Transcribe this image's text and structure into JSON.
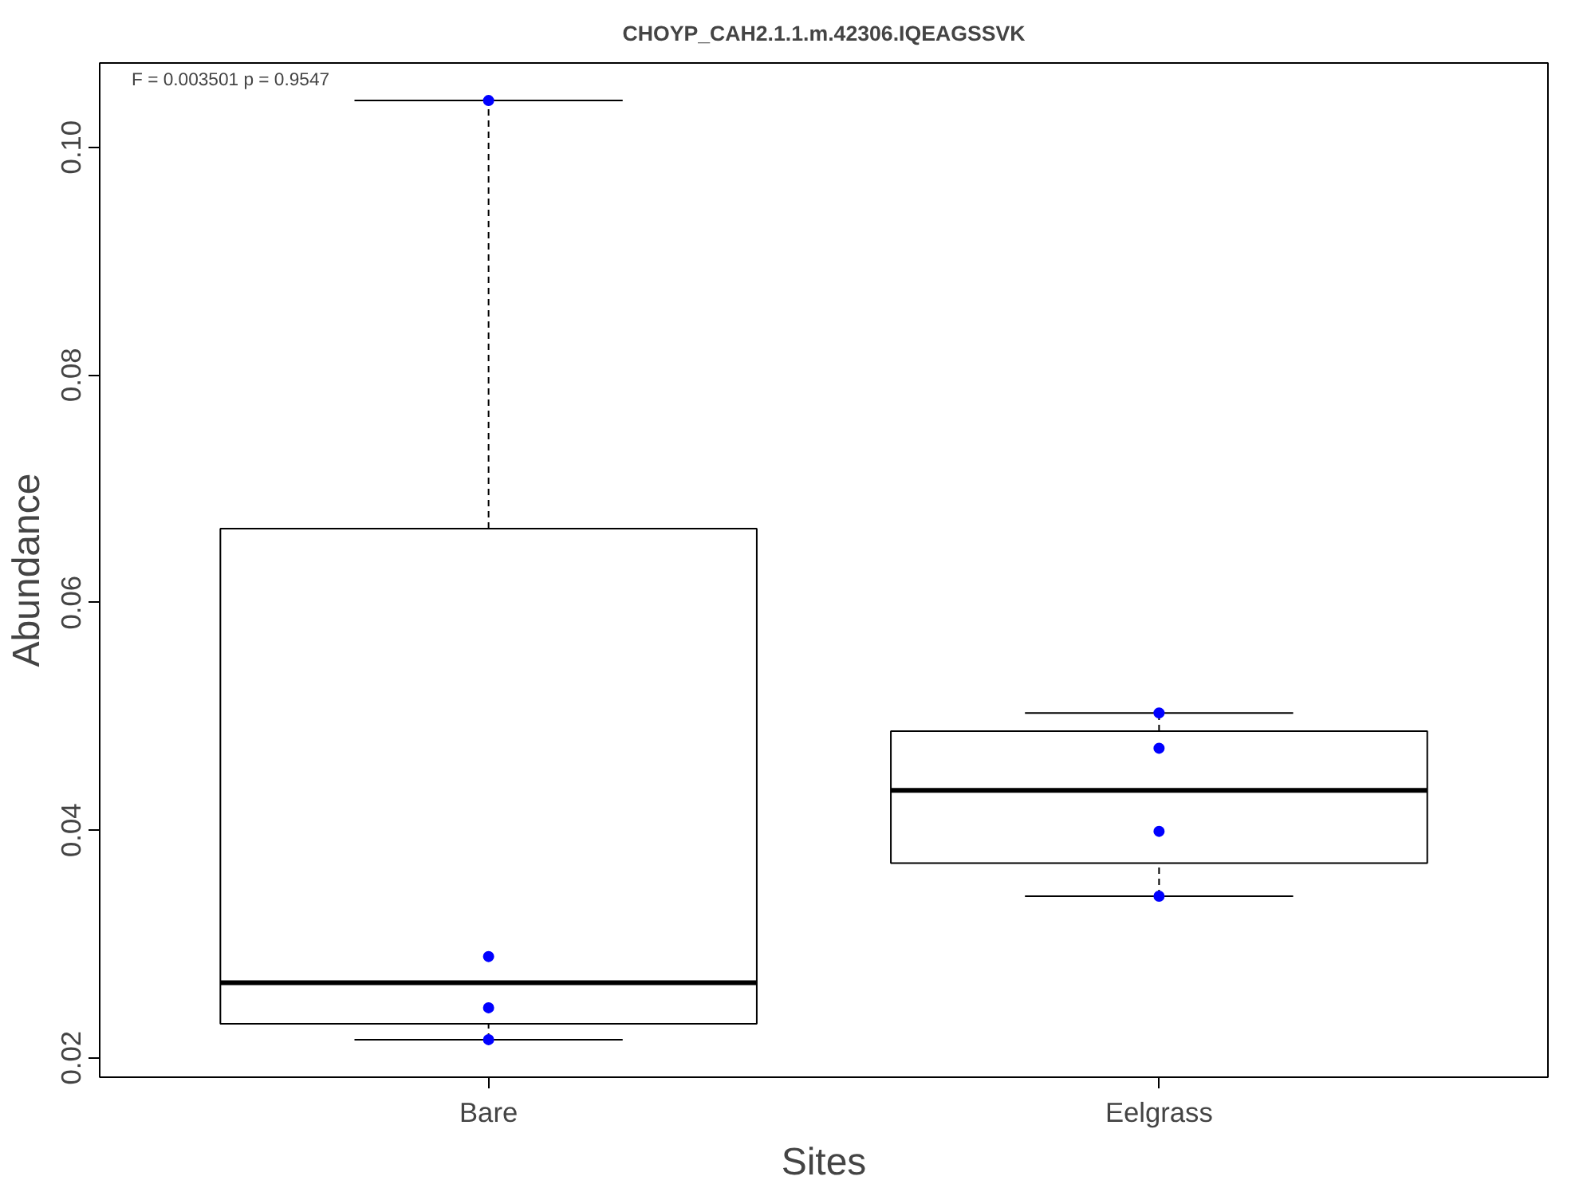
{
  "chart_data": {
    "type": "box",
    "title": "CHOYP_CAH2.1.1.m.42306.IQEAGSSVK",
    "xlabel": "Sites",
    "ylabel": "Abundance",
    "categories": [
      "Bare",
      "Eelgrass"
    ],
    "boxes": [
      {
        "low": 0.0216,
        "q1": 0.023,
        "median": 0.0266,
        "q3": 0.0665,
        "high": 0.1041
      },
      {
        "low": 0.0342,
        "q1": 0.0371,
        "median": 0.0435,
        "q3": 0.0487,
        "high": 0.0503
      }
    ],
    "series": [
      {
        "type": "scatter",
        "color": "#0000ff",
        "x": [
          "Bare",
          "Bare",
          "Bare",
          "Bare",
          "Eelgrass",
          "Eelgrass",
          "Eelgrass",
          "Eelgrass"
        ],
        "values": [
          0.1041,
          0.0289,
          0.0244,
          0.0216,
          0.0503,
          0.0472,
          0.0399,
          0.0342
        ]
      }
    ],
    "ylim": [
      0.0183,
      0.1074
    ],
    "yticks": [
      0.02,
      0.04,
      0.06,
      0.08,
      {
        "value": 0.1,
        "label": "0.10"
      }
    ],
    "annotations": [
      "F = 0.003501 p = 0.9547"
    ],
    "grid": false,
    "marker": "circle"
  }
}
